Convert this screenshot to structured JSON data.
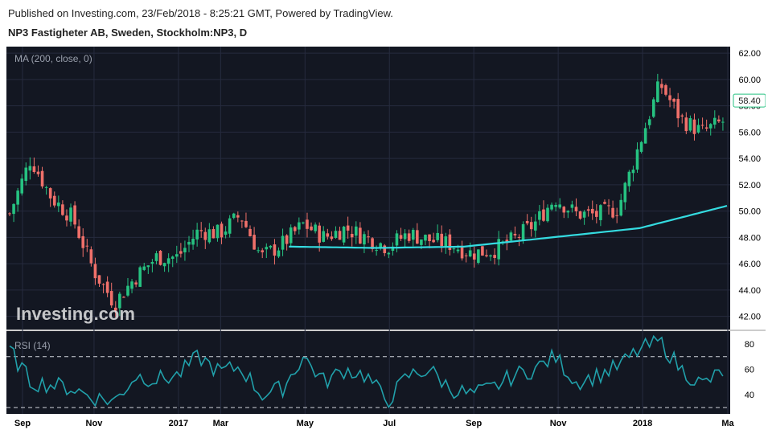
{
  "header": {
    "published": "Published on Investing.com, 23/Feb/2018 - 8:25:21 GMT, Powered by TradingView.",
    "symbol": "NP3 Fastigheter AB, Sweden, Stockholm:NP3, D"
  },
  "watermark": "Investing.com",
  "colors": {
    "background": "#131722",
    "up": "#26c281",
    "down": "#f0706a",
    "ma": "#34dbe0",
    "rsi": "#21a0aa",
    "grid": "#262b3e",
    "axis_text": "#000000"
  },
  "chart_data": [
    {
      "type": "candlestick",
      "indicator": "MA (200, close, 0)",
      "ylim": [
        41,
        62.5
      ],
      "yticks": [
        "62.00",
        "60.00",
        "58.00",
        "56.00",
        "54.00",
        "52.00",
        "50.00",
        "48.00",
        "46.00",
        "44.00",
        "42.00"
      ],
      "last_price": "58.40",
      "close_anchors": [
        [
          "Sep",
          49.8
        ],
        [
          "",
          54.0
        ],
        [
          "",
          51.0
        ],
        [
          "",
          49.5
        ],
        [
          "Nov",
          45.5
        ],
        [
          "",
          43.0
        ],
        [
          "",
          45.0
        ],
        [
          "",
          46.5
        ],
        [
          "2017",
          46.5
        ],
        [
          "",
          48.5
        ],
        [
          "Mar",
          48.3
        ],
        [
          "",
          49.7
        ],
        [
          "",
          46.5
        ],
        [
          "",
          47.5
        ],
        [
          "May",
          49.0
        ],
        [
          "",
          48.0
        ],
        [
          "",
          48.7
        ],
        [
          "",
          48.0
        ],
        [
          "Jul",
          47.3
        ],
        [
          "",
          48.3
        ],
        [
          "",
          47.8
        ],
        [
          "",
          47.5
        ],
        [
          "Sep",
          46.8
        ],
        [
          "",
          47.0
        ],
        [
          "",
          47.8
        ],
        [
          "",
          49.0
        ],
        [
          "Nov",
          51.0
        ],
        [
          "",
          49.8
        ],
        [
          "",
          49.7
        ],
        [
          "",
          50.2
        ],
        [
          "2018",
          55.0
        ],
        [
          "",
          59.7
        ],
        [
          "",
          57.0
        ],
        [
          "",
          56.0
        ],
        [
          "Mar",
          56.8
        ]
      ],
      "ma_anchors": [
        [
          "May",
          47.3
        ],
        [
          "Jul",
          47.2
        ],
        [
          "Sep",
          47.3
        ],
        [
          "Nov",
          48.0
        ],
        [
          "2018",
          48.7
        ],
        [
          "Mar",
          50.4
        ]
      ]
    },
    {
      "type": "line",
      "indicator": "RSI (14)",
      "ylim": [
        25,
        90
      ],
      "yticks": [
        "80",
        "60",
        "40"
      ],
      "levels": [
        70,
        30
      ],
      "anchors": [
        [
          "Sep",
          75
        ],
        [
          "",
          50
        ],
        [
          "",
          48
        ],
        [
          "",
          45
        ],
        [
          "Nov",
          38
        ],
        [
          "",
          35
        ],
        [
          "",
          55
        ],
        [
          "",
          52
        ],
        [
          "2017",
          55
        ],
        [
          "",
          70
        ],
        [
          "Mar",
          58
        ],
        [
          "",
          62
        ],
        [
          "",
          40
        ],
        [
          "",
          45
        ],
        [
          "May",
          70
        ],
        [
          "",
          50
        ],
        [
          "",
          60
        ],
        [
          "",
          55
        ],
        [
          "Jul",
          35
        ],
        [
          "",
          55
        ],
        [
          "",
          60
        ],
        [
          "",
          45
        ],
        [
          "Sep",
          40
        ],
        [
          "",
          45
        ],
        [
          "",
          55
        ],
        [
          "",
          60
        ],
        [
          "Nov",
          70
        ],
        [
          "",
          50
        ],
        [
          "",
          55
        ],
        [
          "",
          62
        ],
        [
          "2018",
          75
        ],
        [
          "",
          82
        ],
        [
          "",
          60
        ],
        [
          "",
          48
        ],
        [
          "Mar",
          58
        ]
      ]
    }
  ],
  "xaxis": {
    "labels": [
      "Sep",
      "Nov",
      "2017",
      "Mar",
      "May",
      "Jul",
      "Sep",
      "Nov",
      "2018",
      "Ma"
    ]
  }
}
